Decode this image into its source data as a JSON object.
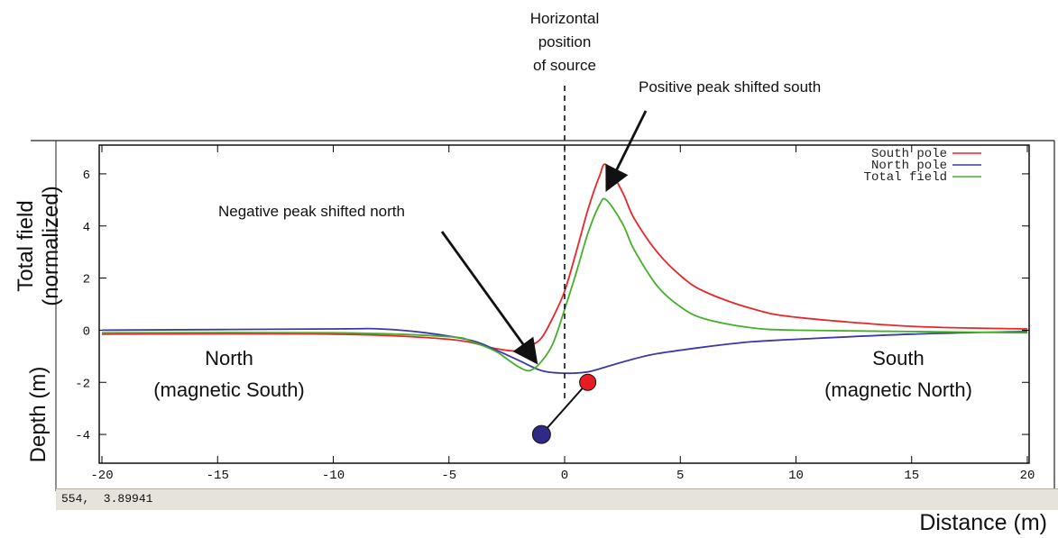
{
  "chart_data": {
    "type": "line",
    "xlim": [
      -20,
      20
    ],
    "ylim": [
      -5,
      7
    ],
    "x_ticks": [
      -20,
      -15,
      -10,
      -5,
      0,
      5,
      10,
      15,
      20
    ],
    "y_ticks": [
      -4,
      -2,
      0,
      2,
      4,
      6
    ],
    "x_tick_labels": [
      "-20",
      "-15",
      "-10",
      "-5",
      "0",
      "5",
      "10",
      "15",
      "20"
    ],
    "y_tick_labels": [
      "-4",
      "-2",
      "0",
      "2",
      "4",
      "6"
    ],
    "xlabel": "Distance (m)",
    "ylabel_top": [
      "Total field",
      "(normalized)"
    ],
    "ylabel_bottom": "Depth (m)",
    "grid": false,
    "legend_position": "top-right",
    "series": [
      {
        "name": "South pole",
        "color": "#e8262a",
        "x": [
          -20,
          -10,
          -5,
          -3,
          -2,
          -1.5,
          -1,
          -0.5,
          0,
          0.5,
          1,
          1.5,
          1.8,
          2.5,
          3,
          4,
          5,
          6,
          8,
          10,
          15,
          20
        ],
        "y": [
          -0.15,
          -0.15,
          -0.35,
          -0.7,
          -0.8,
          -0.6,
          -0.3,
          0.5,
          1.5,
          3.0,
          4.6,
          5.9,
          6.35,
          5.3,
          4.3,
          3.0,
          2.1,
          1.5,
          0.85,
          0.5,
          0.15,
          0.05
        ]
      },
      {
        "name": "North pole",
        "color": "#3b3aa6",
        "x": [
          -20,
          -10,
          -8,
          -6,
          -4,
          -3,
          -2,
          -1,
          0,
          1,
          2,
          3,
          4,
          6,
          8,
          10,
          15,
          20
        ],
        "y": [
          0.0,
          0.05,
          0.05,
          -0.1,
          -0.4,
          -0.75,
          -1.15,
          -1.55,
          -1.65,
          -1.6,
          -1.35,
          -1.1,
          -0.9,
          -0.65,
          -0.45,
          -0.35,
          -0.15,
          -0.05
        ]
      },
      {
        "name": "Total field",
        "color": "#43b02a",
        "x": [
          -20,
          -10,
          -5,
          -4,
          -3,
          -2.5,
          -2,
          -1.5,
          -1,
          -0.5,
          0,
          0.5,
          1,
          1.5,
          1.8,
          2.5,
          3,
          4,
          5,
          6,
          8,
          10,
          15,
          20
        ],
        "y": [
          -0.1,
          -0.1,
          -0.25,
          -0.45,
          -0.8,
          -1.1,
          -1.4,
          -1.55,
          -1.2,
          -0.5,
          0.8,
          2.2,
          3.7,
          4.8,
          5.0,
          4.1,
          3.1,
          1.7,
          0.9,
          0.45,
          0.1,
          0.0,
          -0.05,
          -0.1
        ]
      }
    ],
    "sources": [
      {
        "name": "South pole",
        "color": "#e81c22",
        "x": 1.0,
        "y": -2.0
      },
      {
        "name": "North pole",
        "color": "#2e2a86",
        "x": -1.0,
        "y": -4.0
      }
    ],
    "source_marker_x": 0
  },
  "annotations": {
    "source_label": [
      "Horizontal",
      "position",
      "of source"
    ],
    "positive_peak": "Positive peak shifted south",
    "negative_peak": "Negative peak shifted north",
    "north_label": [
      "North",
      "(magnetic South)"
    ],
    "south_label": [
      "South",
      "(magnetic North)"
    ]
  },
  "status_bar": {
    "text": "554,  3.89941"
  }
}
